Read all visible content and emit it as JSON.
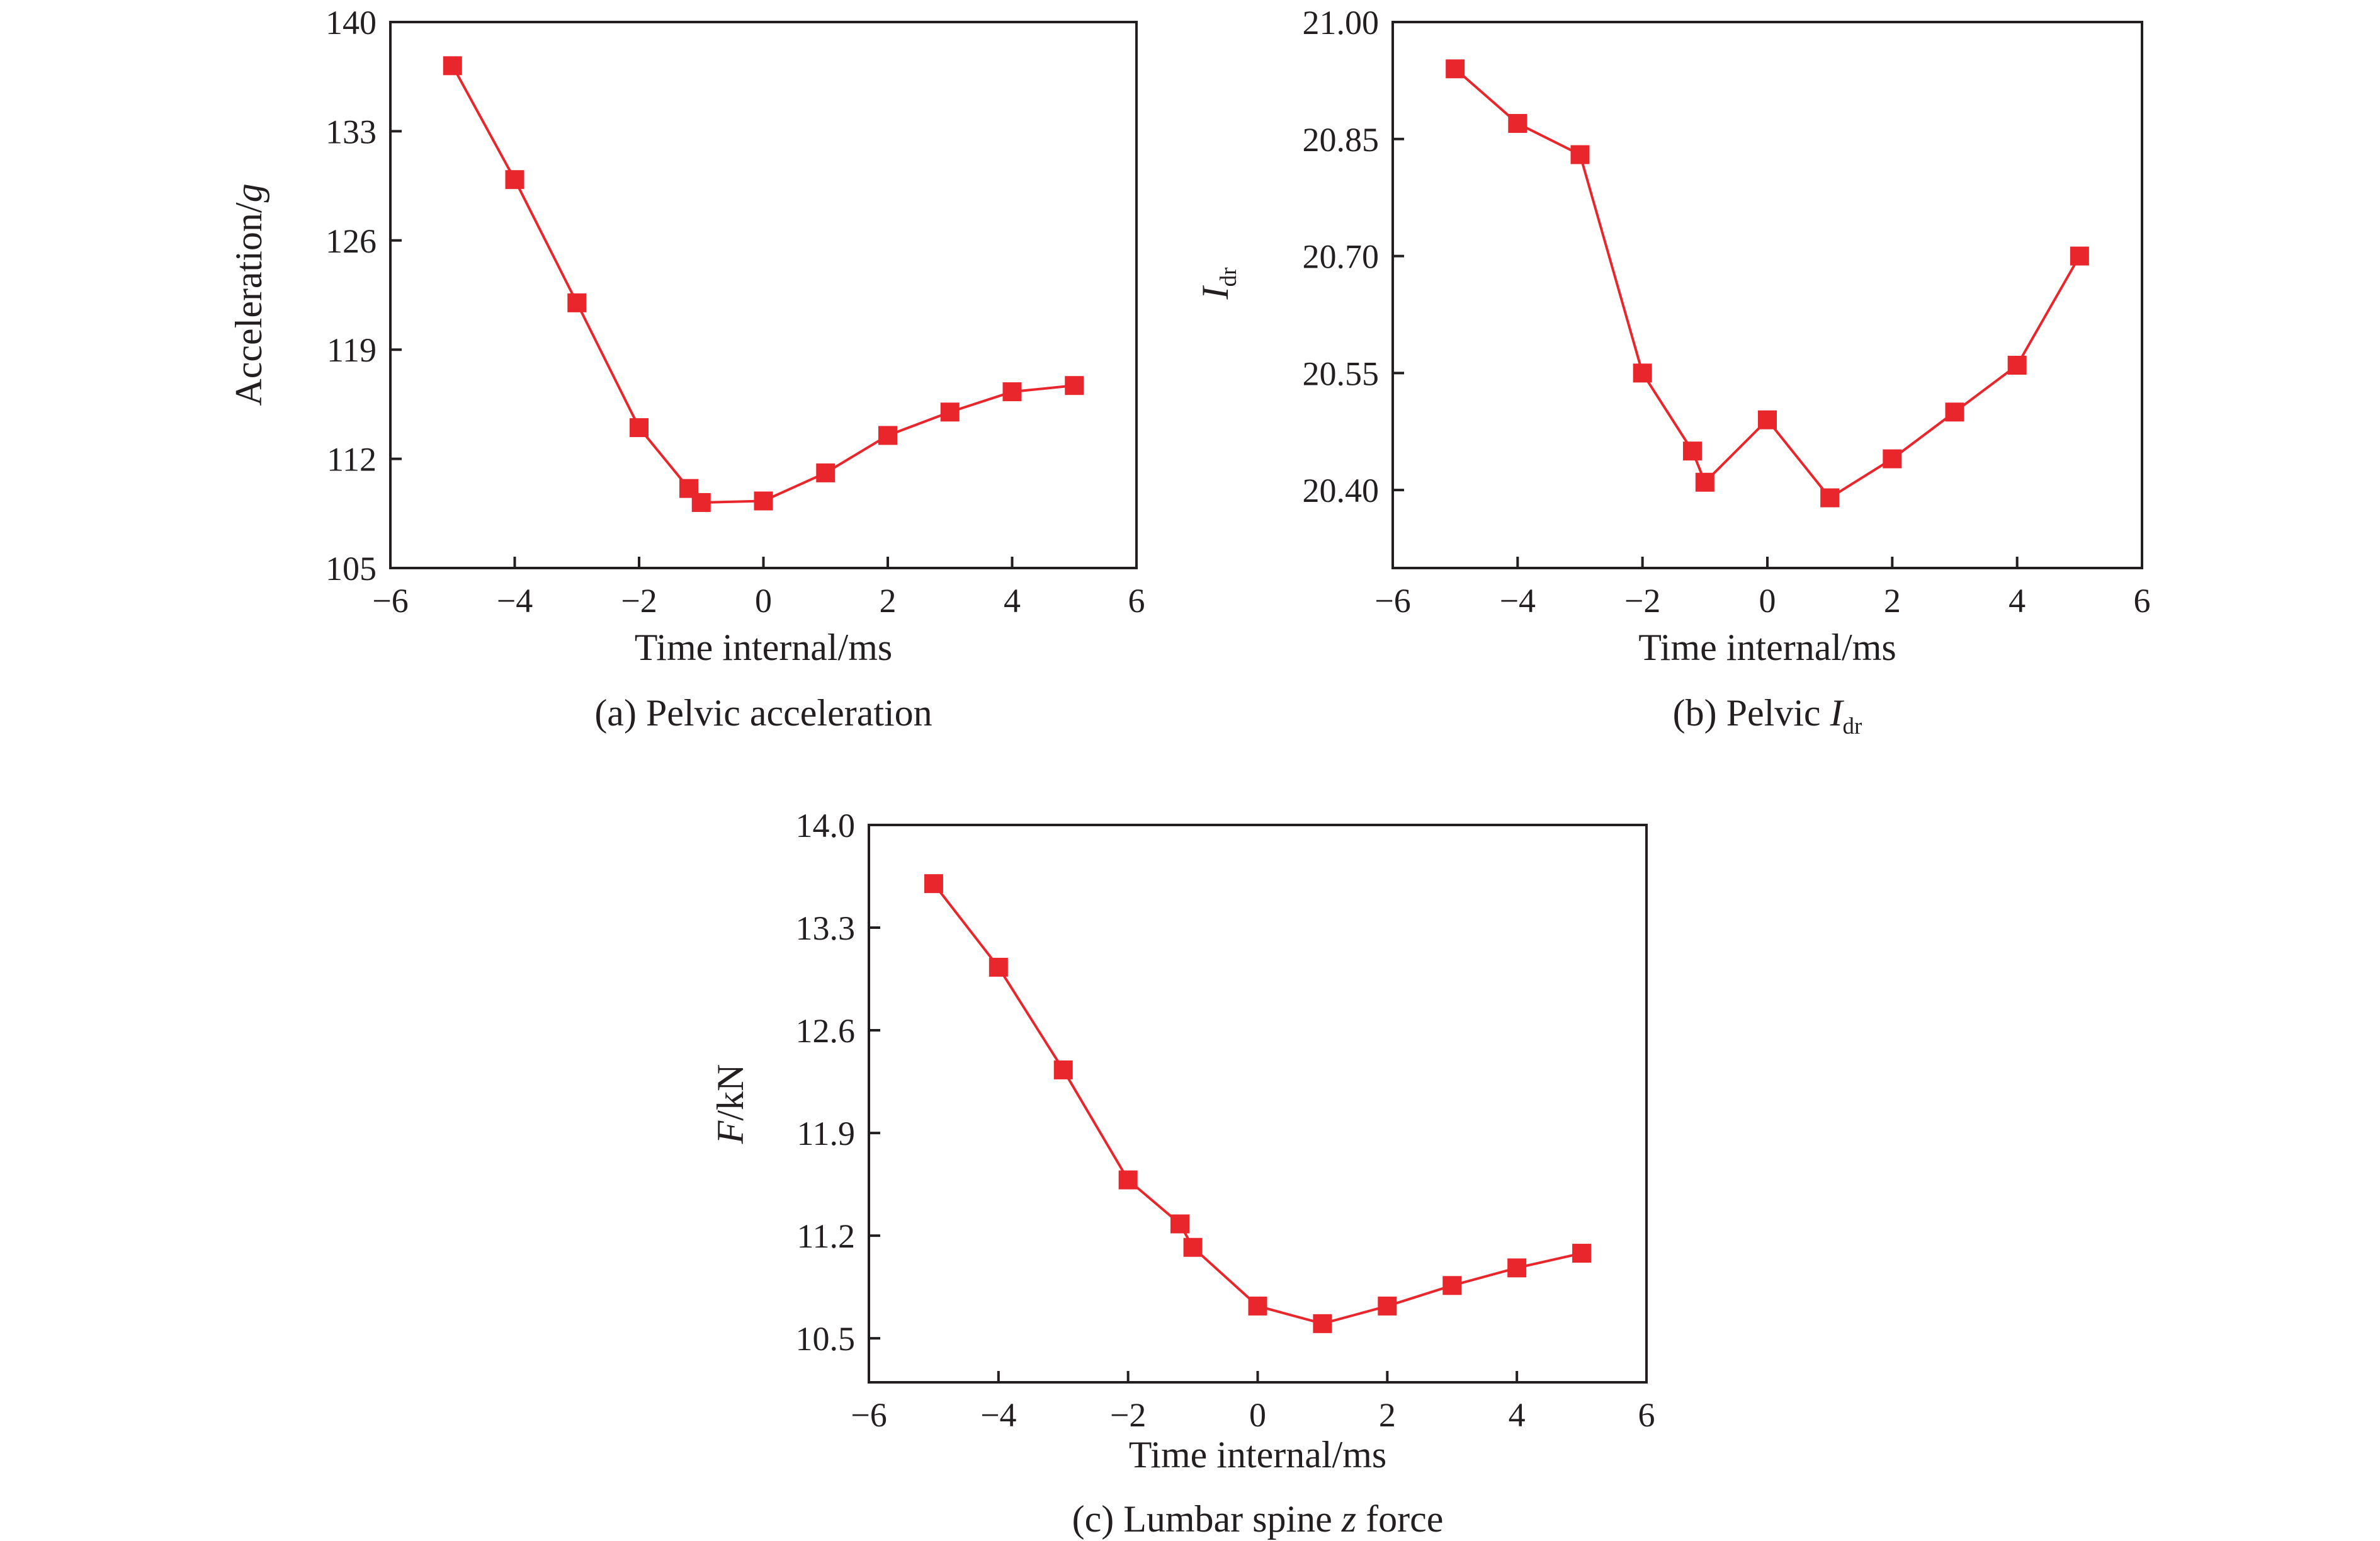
{
  "accent_color": "#e8262b",
  "chart_data": [
    {
      "type": "line",
      "caption": "(a) Pelvic acceleration",
      "xlabel": "Time internal/ms",
      "ylabel": "Acceleration/g",
      "xlim": [
        -6,
        6
      ],
      "ylim": [
        105,
        140
      ],
      "xticks": [
        -6,
        -4,
        -2,
        0,
        2,
        4,
        6
      ],
      "yticks": [
        105,
        112,
        119,
        126,
        133,
        140
      ],
      "ytick_labels": [
        "105",
        "112",
        "119",
        "126",
        "133",
        "140"
      ],
      "marker": "square",
      "series": [
        {
          "x": [
            -5,
            -4,
            -3,
            -2,
            -1.2,
            -1,
            0,
            1,
            2,
            3,
            4,
            5
          ],
          "y": [
            137.2,
            129.9,
            122.0,
            114.0,
            110.1,
            109.2,
            109.3,
            111.1,
            113.5,
            115.0,
            116.3,
            116.7
          ]
        }
      ]
    },
    {
      "type": "line",
      "caption": "(b) Pelvic I_dr",
      "xlabel": "Time internal/ms",
      "ylabel": "I_dr",
      "xlim": [
        -6,
        6
      ],
      "ylim": [
        20.3,
        21.0
      ],
      "xticks": [
        -6,
        -4,
        -2,
        0,
        2,
        4,
        6
      ],
      "yticks": [
        20.4,
        20.55,
        20.7,
        20.85,
        21.0
      ],
      "ytick_labels": [
        "20.40",
        "20.55",
        "20.70",
        "20.85",
        "21.00"
      ],
      "marker": "square",
      "series": [
        {
          "x": [
            -5,
            -4,
            -3,
            -2,
            -1.2,
            -1,
            0,
            1,
            2,
            3,
            4,
            5
          ],
          "y": [
            20.94,
            20.87,
            20.83,
            20.55,
            20.45,
            20.41,
            20.49,
            20.39,
            20.44,
            20.5,
            20.56,
            20.7
          ]
        }
      ]
    },
    {
      "type": "line",
      "caption": "(c) Lumbar spine z force",
      "xlabel": "Time internal/ms",
      "ylabel": "F/kN",
      "xlim": [
        -6,
        6
      ],
      "ylim": [
        10.2,
        14.0
      ],
      "xticks": [
        -6,
        -4,
        -2,
        0,
        2,
        4,
        6
      ],
      "yticks": [
        10.5,
        11.2,
        11.9,
        12.6,
        13.3,
        14.0
      ],
      "ytick_labels": [
        "10.5",
        "11.2",
        "11.9",
        "12.6",
        "13.3",
        "14.0"
      ],
      "marker": "square",
      "series": [
        {
          "x": [
            -5,
            -4,
            -3,
            -2,
            -1.2,
            -1,
            0,
            1,
            2,
            3,
            4,
            5
          ],
          "y": [
            13.6,
            13.03,
            12.33,
            11.58,
            11.28,
            11.12,
            10.72,
            10.6,
            10.72,
            10.86,
            10.98,
            11.08
          ]
        }
      ]
    }
  ]
}
